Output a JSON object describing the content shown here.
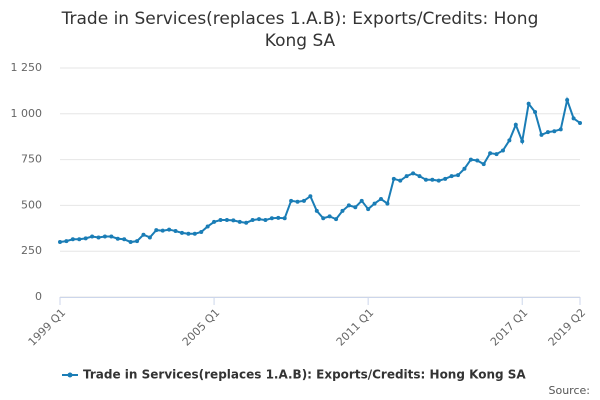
{
  "chart_data": {
    "type": "line",
    "title": "Trade in Services(replaces 1.A.B): Exports/Credits: Hong Kong SA",
    "categories": [
      "1999 Q1",
      null,
      null,
      null,
      null,
      null,
      null,
      null,
      null,
      null,
      null,
      null,
      null,
      null,
      null,
      null,
      null,
      null,
      null,
      null,
      null,
      null,
      null,
      null,
      "2005 Q1",
      null,
      null,
      null,
      null,
      null,
      null,
      null,
      null,
      null,
      null,
      null,
      null,
      null,
      null,
      null,
      null,
      null,
      null,
      null,
      null,
      null,
      null,
      null,
      "2011 Q1",
      null,
      null,
      null,
      null,
      null,
      null,
      null,
      null,
      null,
      null,
      null,
      null,
      null,
      null,
      null,
      null,
      null,
      null,
      null,
      null,
      null,
      null,
      null,
      "2017 Q1",
      null,
      null,
      null,
      null,
      null,
      null,
      null,
      null,
      "2019 Q2"
    ],
    "series": [
      {
        "name": "Trade in Services(replaces 1.A.B): Exports/Credits: Hong Kong SA",
        "color": "#1a7db6",
        "values": [
          300,
          305,
          315,
          315,
          320,
          330,
          325,
          330,
          330,
          318,
          315,
          300,
          305,
          340,
          325,
          365,
          362,
          368,
          360,
          350,
          345,
          345,
          355,
          385,
          410,
          420,
          420,
          418,
          410,
          405,
          420,
          425,
          420,
          430,
          432,
          430,
          525,
          520,
          525,
          550,
          470,
          430,
          440,
          425,
          470,
          500,
          490,
          525,
          480,
          510,
          535,
          510,
          645,
          635,
          660,
          675,
          660,
          640,
          640,
          635,
          645,
          660,
          665,
          700,
          750,
          745,
          725,
          785,
          780,
          800,
          855,
          940,
          850,
          1055,
          1010,
          885,
          900,
          905,
          915,
          1075,
          975,
          950
        ]
      }
    ],
    "ylim": [
      0,
      1250
    ],
    "yticks": [
      0,
      250,
      500,
      750,
      {
        "value": 1000,
        "label": "1 000"
      },
      {
        "value": 1250,
        "label": "1 250"
      }
    ],
    "grid": true,
    "legend": "bottom",
    "source": "Source:"
  }
}
